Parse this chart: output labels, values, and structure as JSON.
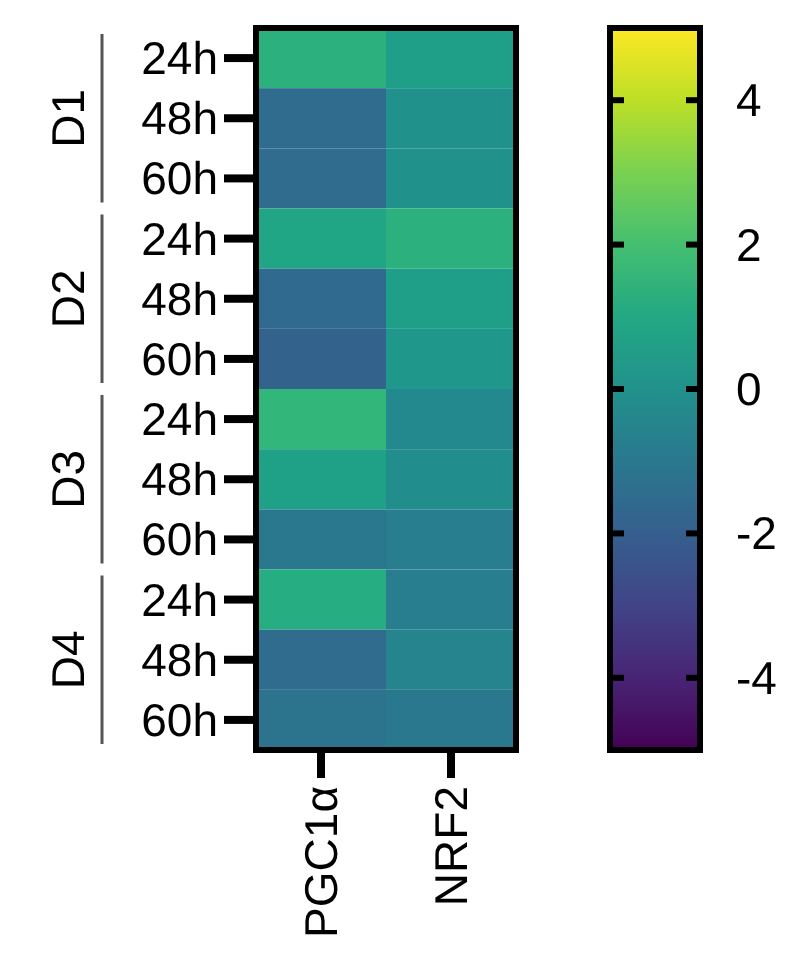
{
  "chart_data": {
    "type": "heatmap",
    "categories": [
      "PGC1α",
      "NRF2"
    ],
    "y_categories": [
      "24h",
      "48h",
      "60h",
      "24h",
      "48h",
      "60h",
      "24h",
      "48h",
      "60h",
      "24h",
      "48h",
      "60h"
    ],
    "cells": [
      [
        1.4,
        0.6
      ],
      [
        -1.5,
        0.0
      ],
      [
        -1.5,
        0.0
      ],
      [
        0.9,
        1.4
      ],
      [
        -1.6,
        0.6
      ],
      [
        -1.9,
        0.3
      ],
      [
        1.6,
        -0.3
      ],
      [
        0.7,
        -0.1
      ],
      [
        -1.0,
        -0.8
      ],
      [
        1.2,
        -0.8
      ],
      [
        -1.5,
        -0.5
      ],
      [
        -1.2,
        -1.0
      ]
    ],
    "annotations": [
      "D1",
      "D2",
      "D3",
      "D4"
    ],
    "clim": [
      -5,
      5
    ],
    "cticks": [
      -4,
      -2,
      0,
      2,
      4
    ]
  }
}
